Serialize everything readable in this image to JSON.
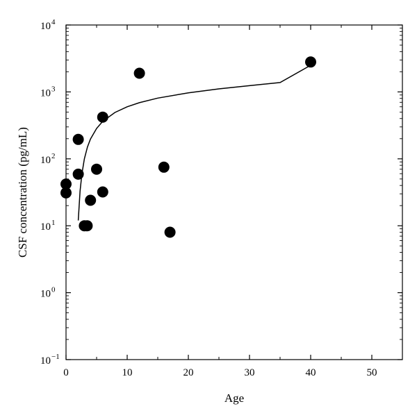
{
  "chart_data": {
    "type": "scatter",
    "xlabel": "Age",
    "ylabel": "CSF concentration  (pg/mL)",
    "xlim": [
      0,
      55
    ],
    "ylim": [
      0.1,
      10000
    ],
    "yscale": "log",
    "grid": false,
    "x_ticks": [
      {
        "value": 0,
        "label": "0"
      },
      {
        "value": 10,
        "label": "10"
      },
      {
        "value": 20,
        "label": "20"
      },
      {
        "value": 30,
        "label": "30"
      },
      {
        "value": 40,
        "label": "40"
      },
      {
        "value": 50,
        "label": "50"
      }
    ],
    "y_ticks": [
      {
        "value": 0.1,
        "base": "10",
        "exp": "−1"
      },
      {
        "value": 1,
        "base": "10",
        "exp": "0"
      },
      {
        "value": 10,
        "base": "10",
        "exp": "1"
      },
      {
        "value": 100,
        "base": "10",
        "exp": "2"
      },
      {
        "value": 1000,
        "base": "10",
        "exp": "3"
      },
      {
        "value": 10000,
        "base": "10",
        "exp": "4"
      }
    ],
    "points": [
      {
        "x": 0,
        "y": 42
      },
      {
        "x": 0,
        "y": 31
      },
      {
        "x": 2,
        "y": 195
      },
      {
        "x": 2,
        "y": 59
      },
      {
        "x": 3,
        "y": 10
      },
      {
        "x": 3,
        "y": 10
      },
      {
        "x": 4,
        "y": 24
      },
      {
        "x": 5,
        "y": 70
      },
      {
        "x": 6,
        "y": 420
      },
      {
        "x": 6,
        "y": 32
      },
      {
        "x": 12,
        "y": 1900
      },
      {
        "x": 16,
        "y": 75
      },
      {
        "x": 17,
        "y": 8
      },
      {
        "x": 40,
        "y": 2800
      }
    ],
    "fit_curve": {
      "type": "logarithmic",
      "x": [
        2,
        2.3,
        2.6,
        3,
        3.5,
        4,
        5,
        6,
        8,
        10,
        12,
        15,
        20,
        25,
        30,
        35,
        40
      ],
      "y": [
        12,
        33,
        60,
        100,
        150,
        198,
        285,
        363,
        493,
        600,
        690,
        808,
        970,
        1110,
        1240,
        1380,
        2500
      ]
    }
  }
}
